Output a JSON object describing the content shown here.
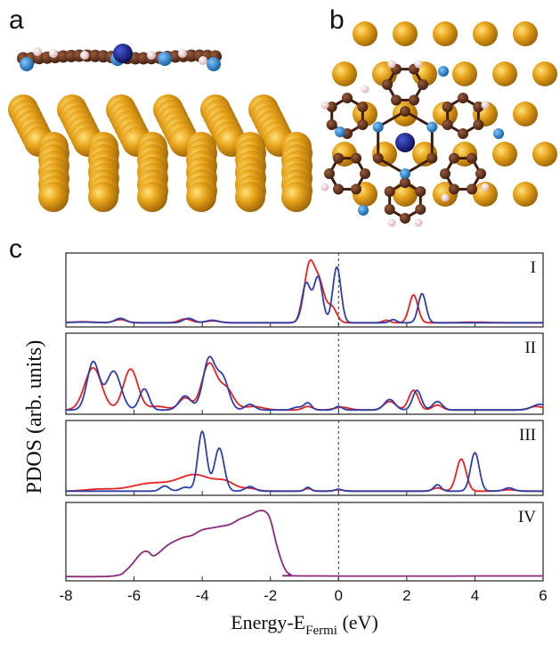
{
  "panel_labels": {
    "a": "a",
    "b": "b",
    "c": "c"
  },
  "colors": {
    "gold": "#d9960f",
    "gold_dark": "#8a5a08",
    "carbon": "#5a2e1a",
    "nitrogen": "#2a8fd6",
    "metal_center": "#101a80",
    "hydrogen": "#f3d6d6",
    "red_series": "#e52222",
    "blue_series": "#2d3fa8",
    "purple_series": "#8a2a7a"
  },
  "chart_data": {
    "type": "line",
    "ylabel": "PDOS (arb. units)",
    "xlabel_main": "Energy-E",
    "xlabel_sub": "Fermi",
    "xlabel_unit": " (eV)",
    "xlim": [
      -8,
      6
    ],
    "x_ticks": [
      "-8",
      "-6",
      "-4",
      "-2",
      "0",
      "2",
      "4",
      "6"
    ],
    "x_tick_values": [
      -8,
      -6,
      -4,
      -2,
      0,
      2,
      4,
      6
    ],
    "fermi_line_x": 0,
    "panels": [
      {
        "label": "I",
        "ymax": 1.0,
        "series": [
          {
            "color": "red",
            "peaks": [
              [
                -6.4,
                0.05,
                0.25
              ],
              [
                -4.5,
                0.06,
                0.25
              ],
              [
                -3.7,
                0.03,
                0.3
              ],
              [
                -0.85,
                0.92,
                0.22
              ],
              [
                -0.55,
                0.55,
                0.2
              ],
              [
                -0.2,
                0.25,
                0.2
              ],
              [
                1.4,
                0.04,
                0.15
              ],
              [
                2.2,
                0.44,
                0.18
              ],
              [
                -7.5,
                0.015,
                0.5
              ],
              [
                4.0,
                0.01,
                0.5
              ]
            ]
          },
          {
            "color": "blue",
            "peaks": [
              [
                -6.4,
                0.07,
                0.22
              ],
              [
                -4.4,
                0.07,
                0.22
              ],
              [
                -3.7,
                0.04,
                0.25
              ],
              [
                -0.95,
                0.62,
                0.18
              ],
              [
                -0.6,
                0.72,
                0.18
              ],
              [
                -0.05,
                0.88,
                0.17
              ],
              [
                1.6,
                0.05,
                0.14
              ],
              [
                2.45,
                0.46,
                0.16
              ],
              [
                -7.5,
                0.01,
                0.5
              ]
            ]
          }
        ]
      },
      {
        "label": "II",
        "ymax": 1.0,
        "series": [
          {
            "color": "red",
            "peaks": [
              [
                -7.2,
                0.6,
                0.35
              ],
              [
                -6.1,
                0.58,
                0.3
              ],
              [
                -4.5,
                0.17,
                0.25
              ],
              [
                -3.8,
                0.65,
                0.3
              ],
              [
                -3.3,
                0.3,
                0.3
              ],
              [
                -2.5,
                0.05,
                0.4
              ],
              [
                -0.9,
                0.05,
                0.2
              ],
              [
                0.1,
                0.04,
                0.3
              ],
              [
                1.5,
                0.12,
                0.25
              ],
              [
                2.2,
                0.28,
                0.2
              ],
              [
                2.9,
                0.07,
                0.2
              ],
              [
                5.8,
                0.05,
                0.3
              ],
              [
                -5.3,
                0.05,
                0.4
              ]
            ]
          },
          {
            "color": "blue",
            "peaks": [
              [
                -7.2,
                0.68,
                0.25
              ],
              [
                -6.6,
                0.55,
                0.3
              ],
              [
                -5.7,
                0.3,
                0.2
              ],
              [
                -4.5,
                0.2,
                0.25
              ],
              [
                -3.8,
                0.72,
                0.25
              ],
              [
                -3.4,
                0.45,
                0.25
              ],
              [
                -2.6,
                0.08,
                0.2
              ],
              [
                -1.2,
                0.04,
                0.2
              ],
              [
                -0.9,
                0.1,
                0.15
              ],
              [
                0.0,
                0.05,
                0.15
              ],
              [
                1.5,
                0.15,
                0.22
              ],
              [
                2.3,
                0.28,
                0.18
              ],
              [
                2.9,
                0.12,
                0.2
              ],
              [
                5.9,
                0.08,
                0.3
              ]
            ]
          }
        ]
      },
      {
        "label": "III",
        "ymax": 1.0,
        "series": [
          {
            "color": "red",
            "peaks": [
              [
                -7.0,
                0.03,
                0.6
              ],
              [
                -5.5,
                0.12,
                0.8
              ],
              [
                -4.2,
                0.25,
                0.7
              ],
              [
                -3.3,
                0.12,
                0.4
              ],
              [
                -2.6,
                0.04,
                0.3
              ],
              [
                -0.9,
                0.04,
                0.15
              ],
              [
                0.0,
                0.02,
                0.2
              ],
              [
                2.9,
                0.05,
                0.2
              ],
              [
                3.6,
                0.5,
                0.2
              ],
              [
                5.0,
                0.02,
                0.3
              ]
            ]
          },
          {
            "color": "blue",
            "peaks": [
              [
                -5.1,
                0.08,
                0.18
              ],
              [
                -4.5,
                0.06,
                0.2
              ],
              [
                -4.0,
                0.93,
                0.18
              ],
              [
                -3.5,
                0.67,
                0.2
              ],
              [
                -2.6,
                0.07,
                0.2
              ],
              [
                -0.9,
                0.06,
                0.12
              ],
              [
                0.0,
                0.03,
                0.15
              ],
              [
                2.9,
                0.1,
                0.15
              ],
              [
                4.0,
                0.6,
                0.18
              ],
              [
                5.0,
                0.05,
                0.2
              ]
            ]
          }
        ]
      },
      {
        "label": "IV",
        "ymax": 1.0,
        "series": [
          {
            "color": "purple",
            "points": [
              [
                -8,
                0.01
              ],
              [
                -6.6,
                0.02
              ],
              [
                -6.2,
                0.12
              ],
              [
                -5.8,
                0.35
              ],
              [
                -5.6,
                0.38
              ],
              [
                -5.4,
                0.32
              ],
              [
                -5.0,
                0.48
              ],
              [
                -4.6,
                0.58
              ],
              [
                -4.3,
                0.62
              ],
              [
                -4.0,
                0.7
              ],
              [
                -3.6,
                0.74
              ],
              [
                -3.2,
                0.78
              ],
              [
                -2.9,
                0.86
              ],
              [
                -2.6,
                0.92
              ],
              [
                -2.35,
                0.98
              ],
              [
                -2.15,
                0.97
              ],
              [
                -2.0,
                0.85
              ],
              [
                -1.8,
                0.45
              ],
              [
                -1.6,
                0.15
              ],
              [
                -1.4,
                0.04
              ],
              [
                -1.0,
                0.02
              ],
              [
                6,
                0.02
              ]
            ]
          }
        ]
      }
    ]
  }
}
